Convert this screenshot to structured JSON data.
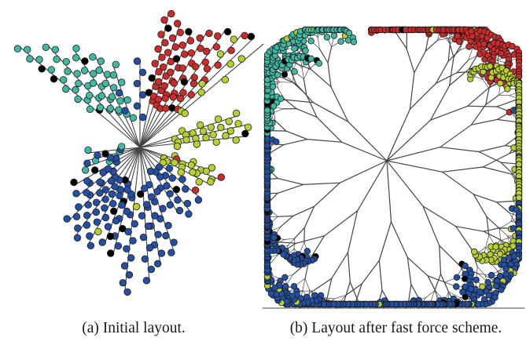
{
  "captions": {
    "a": "(a) Initial layout.",
    "b": "(b) Layout after fast force scheme."
  },
  "node_colors": {
    "cyan": "#3fb8a4",
    "red": "#cc2b2b",
    "yellow_green": "#b8cf2e",
    "blue": "#2350a5"
  },
  "edge_color": "#444444",
  "panels": [
    {
      "id": "a",
      "layout": "radial tree",
      "clusters": [
        "cyan",
        "red",
        "yellow_green",
        "blue"
      ]
    },
    {
      "id": "b",
      "layout": "force-directed tree",
      "clusters": [
        "cyan",
        "red",
        "yellow_green",
        "blue"
      ]
    }
  ]
}
